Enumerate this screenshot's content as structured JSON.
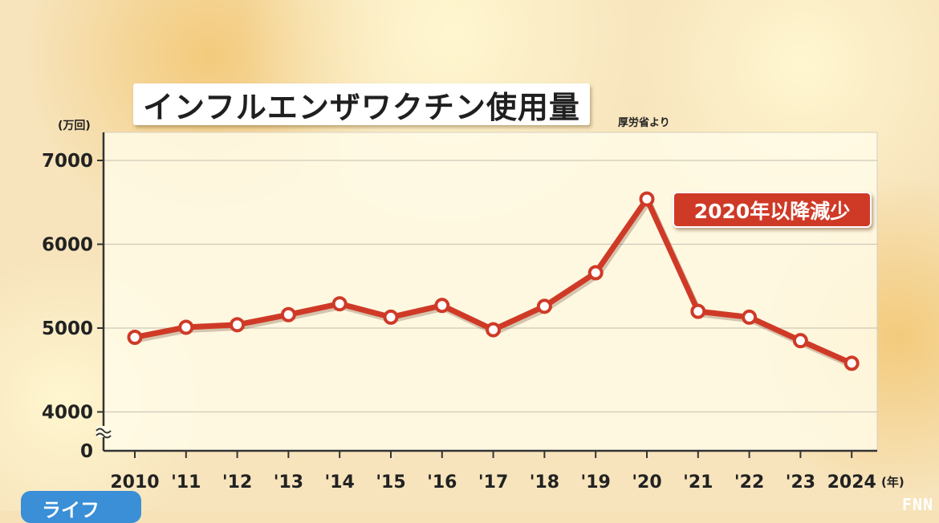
{
  "title": "インフルエンザワクチン使用量",
  "source": "厚労省より",
  "unit_label": "(万回)",
  "x_unit_label": "(年)",
  "annotation": "2020年以降減少",
  "category_tag": "ライフ",
  "logo": "FNN",
  "colors": {
    "line": "#cf3a27",
    "annotation_bg": "#cf3a27",
    "tag_bg": "#3a8fd6",
    "plot_bg": "#fffbe8"
  },
  "chart_data": {
    "type": "line",
    "title": "インフルエンザワクチン使用量",
    "ylabel": "(万回)",
    "xlabel": "(年)",
    "ylim": [
      4000,
      7000
    ],
    "y_axis_break": true,
    "y_ticks": [
      "7000",
      "6000",
      "5000",
      "4000",
      "0"
    ],
    "grid": true,
    "categories": [
      "2010",
      "'11",
      "'12",
      "'13",
      "'14",
      "'15",
      "'16",
      "'17",
      "'18",
      "'19",
      "'20",
      "'21",
      "'22",
      "'23",
      "2024"
    ],
    "series": [
      {
        "values": [
          4890,
          5010,
          5040,
          5160,
          5290,
          5130,
          5270,
          4980,
          5260,
          5660,
          6540,
          5200,
          5130,
          4850,
          4580
        ]
      }
    ]
  }
}
